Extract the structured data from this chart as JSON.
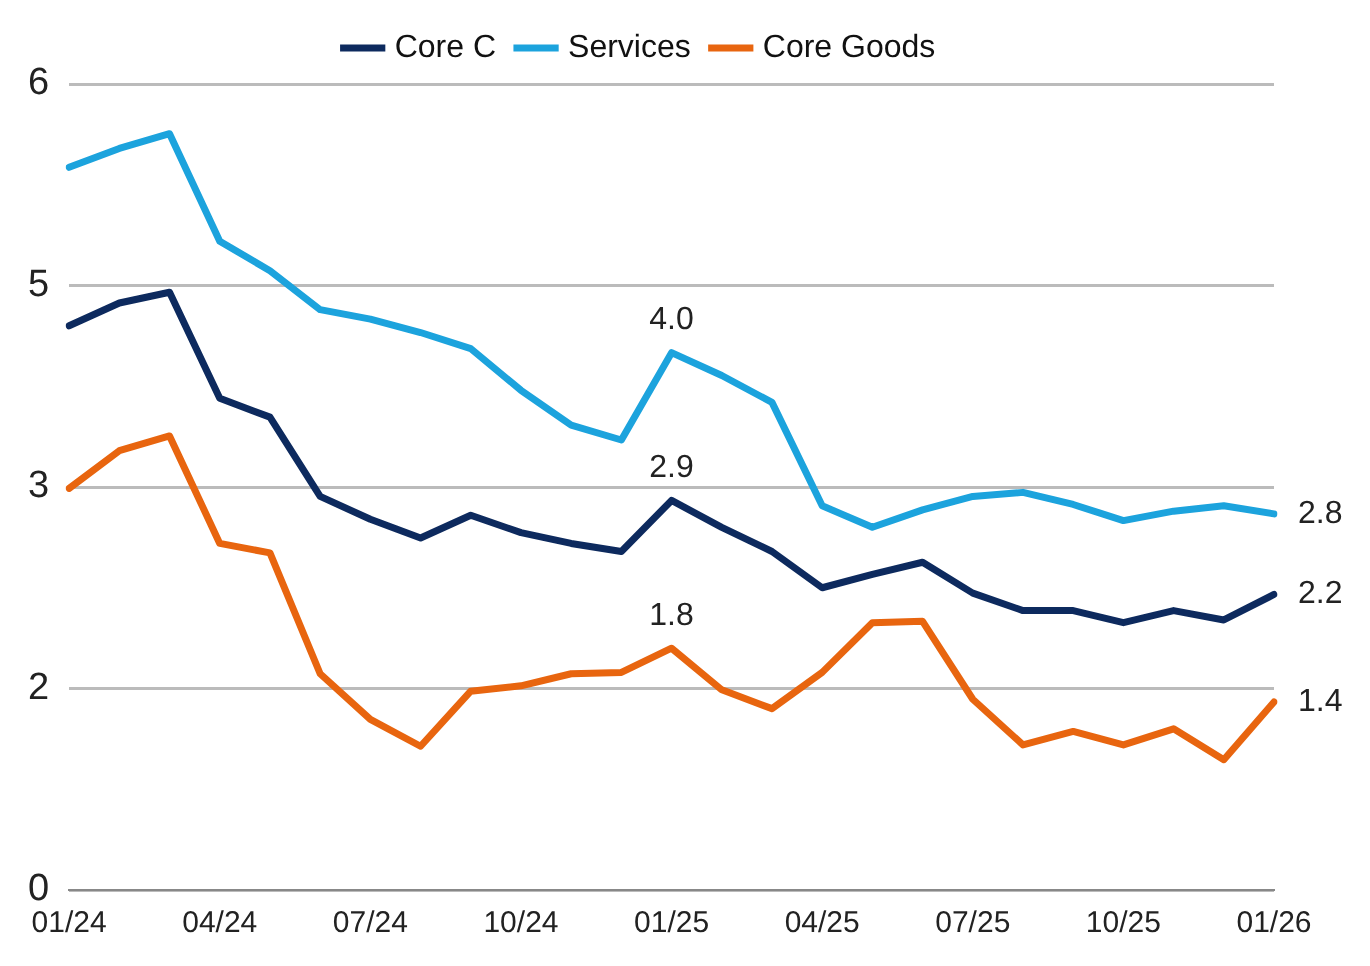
{
  "chart_data": {
    "type": "line",
    "categories": [
      "01/24",
      null,
      null,
      "04/24",
      null,
      null,
      "07/24",
      null,
      null,
      "10/24",
      null,
      null,
      "01/25",
      null,
      null,
      "04/25",
      null,
      null,
      "07/25",
      null,
      null,
      "10/25",
      null,
      null,
      "01/26"
    ],
    "series": [
      {
        "name": "Core C",
        "color": "#0d2a5e",
        "values": [
          4.2,
          4.37,
          4.45,
          3.66,
          3.52,
          2.93,
          2.76,
          2.62,
          2.79,
          2.66,
          2.58,
          2.52,
          2.9,
          2.7,
          2.52,
          2.25,
          2.35,
          2.44,
          2.21,
          2.08,
          2.08,
          1.99,
          2.08,
          2.01,
          2.2
        ],
        "value_labels": [
          null,
          null,
          null,
          null,
          null,
          null,
          null,
          null,
          null,
          null,
          null,
          null,
          "2.9",
          null,
          null,
          null,
          null,
          null,
          null,
          null,
          null,
          null,
          null,
          null,
          "2.2"
        ]
      },
      {
        "name": "Services",
        "color": "#1ca3dd",
        "values": [
          5.38,
          5.52,
          5.63,
          4.83,
          4.61,
          4.32,
          4.25,
          4.15,
          4.03,
          3.72,
          3.46,
          3.35,
          4.0,
          3.83,
          3.63,
          2.86,
          2.7,
          2.83,
          2.93,
          2.96,
          2.87,
          2.75,
          2.82,
          2.86,
          2.8
        ],
        "value_labels": [
          null,
          null,
          null,
          null,
          null,
          null,
          null,
          null,
          null,
          null,
          null,
          null,
          "4.0",
          null,
          null,
          null,
          null,
          null,
          null,
          null,
          null,
          null,
          null,
          null,
          "2.8"
        ]
      },
      {
        "name": "Core Goods",
        "color": "#e8650f",
        "values": [
          2.99,
          3.27,
          3.38,
          2.58,
          2.51,
          1.61,
          1.27,
          1.07,
          1.48,
          1.52,
          1.61,
          1.62,
          1.8,
          1.49,
          1.35,
          1.62,
          1.99,
          2.0,
          1.42,
          1.08,
          1.18,
          1.08,
          1.2,
          0.97,
          1.4
        ],
        "value_labels": [
          null,
          null,
          null,
          null,
          null,
          null,
          null,
          null,
          null,
          null,
          null,
          null,
          "1.8",
          null,
          null,
          null,
          null,
          null,
          null,
          null,
          null,
          null,
          null,
          null,
          "1.4"
        ]
      }
    ],
    "ylim": [
      0,
      6
    ],
    "yticks": [
      0,
      {
        "value": 1.5,
        "label": "2"
      },
      3,
      {
        "value": 4.5,
        "label": "5"
      },
      6
    ],
    "grid": "y",
    "legend": "top",
    "marker": "none",
    "line_style": "solid"
  }
}
